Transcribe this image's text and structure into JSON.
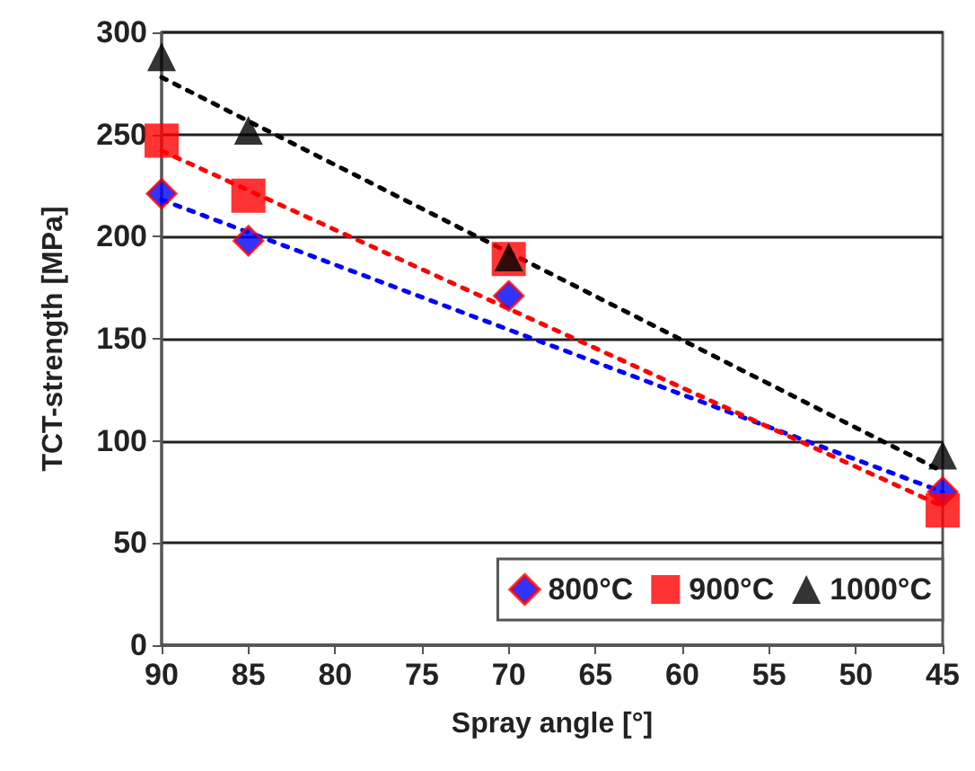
{
  "chart_data": {
    "type": "scatter",
    "xlabel": "Spray angle [°]",
    "ylabel": "TCT-strength [MPa]",
    "xlim": [
      90,
      45
    ],
    "xticks": [
      90,
      85,
      80,
      75,
      70,
      65,
      60,
      55,
      50,
      45
    ],
    "ylim": [
      0,
      300
    ],
    "yticks": [
      0,
      50,
      100,
      150,
      200,
      250,
      300
    ],
    "grid": "y",
    "legend": "bottom right",
    "series": [
      {
        "type": "line",
        "color": "#0000ff",
        "x": [
          90,
          45
        ],
        "values": [
          218,
          75
        ],
        "line_style": "dotted",
        "marker": "none"
      },
      {
        "type": "line",
        "color": "#ff0000",
        "x": [
          90,
          45
        ],
        "values": [
          242,
          68
        ],
        "line_style": "dotted",
        "marker": "none"
      },
      {
        "type": "line",
        "color": "#000000",
        "x": [
          90,
          45
        ],
        "values": [
          278,
          85
        ],
        "line_style": "dotted",
        "marker": "none"
      },
      {
        "name": "800°C",
        "color": "#0000ff",
        "x": [
          90,
          85,
          70,
          45
        ],
        "values": [
          221,
          198,
          171,
          75
        ],
        "marker": "diamond"
      },
      {
        "name": "900°C",
        "color": "#ff0000",
        "x": [
          90,
          85,
          70,
          45
        ],
        "values": [
          247,
          220,
          189,
          66
        ],
        "marker": "square"
      },
      {
        "name": "1000°C",
        "color": "#000000",
        "x": [
          90,
          85,
          70,
          45
        ],
        "values": [
          288,
          252,
          190,
          93
        ],
        "marker": "triangle"
      }
    ]
  }
}
